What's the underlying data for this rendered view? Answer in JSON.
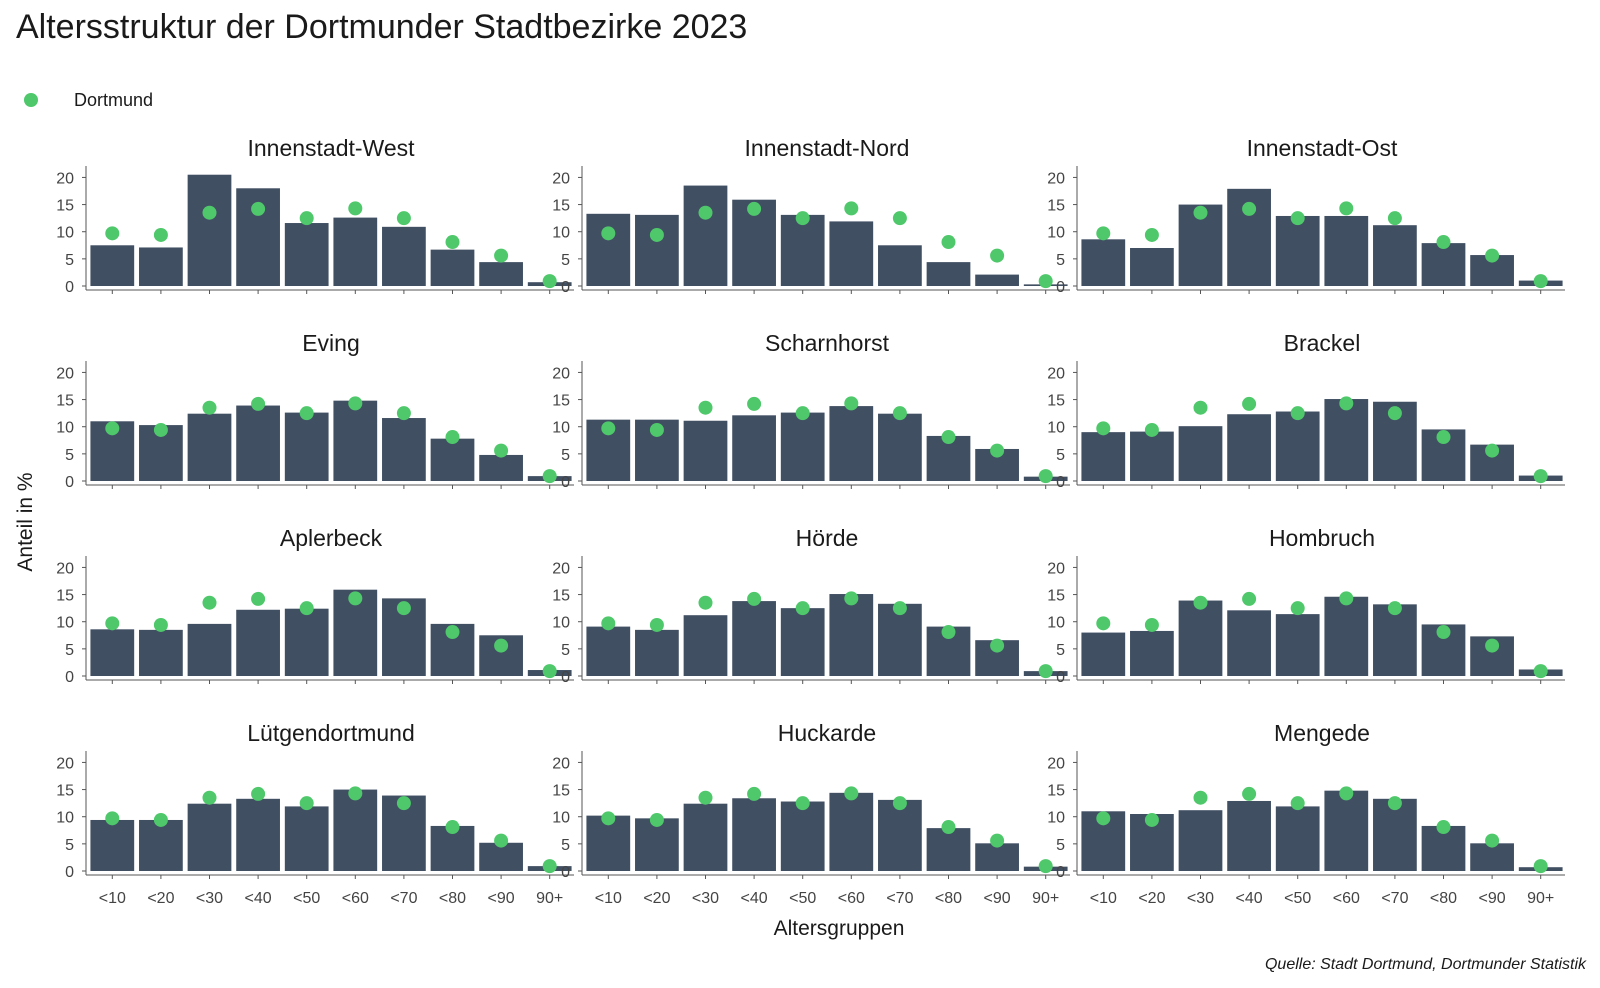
{
  "colors": {
    "bar": "#414f63",
    "dot": "#4ec86a",
    "axis": "#555555"
  },
  "chart_data": {
    "type": "bar",
    "title": "Altersstruktur der Dortmunder Stadtbezirke 2023",
    "xlabel": "Altersgruppen",
    "ylabel": "Anteil in %",
    "source": "Quelle: Stadt Dortmund, Dortmunder Statistik",
    "legend": {
      "label": "Dortmund",
      "placement": "top-left"
    },
    "ylim": [
      0,
      21
    ],
    "yticks": [
      "0",
      "5",
      "10",
      "15",
      "20"
    ],
    "categories": [
      "<10",
      "<20",
      "<30",
      "<40",
      "<50",
      "<60",
      "<70",
      "<80",
      "<90",
      "90+"
    ],
    "reference": {
      "name": "Dortmund",
      "values": [
        9.7,
        9.4,
        13.5,
        14.2,
        12.5,
        14.3,
        12.5,
        8.1,
        5.6,
        0.9
      ]
    },
    "panels": [
      {
        "name": "Innenstadt-West",
        "values": [
          7.5,
          7.1,
          20.5,
          18.0,
          11.6,
          12.6,
          10.9,
          6.7,
          4.4,
          0.7
        ]
      },
      {
        "name": "Innenstadt-Nord",
        "values": [
          13.3,
          13.1,
          18.5,
          15.9,
          13.1,
          11.9,
          7.5,
          4.4,
          2.1,
          0.3
        ]
      },
      {
        "name": "Innenstadt-Ost",
        "values": [
          8.6,
          7.0,
          15.0,
          17.9,
          12.9,
          12.9,
          11.2,
          7.9,
          5.7,
          1.0
        ]
      },
      {
        "name": "Eving",
        "values": [
          11.0,
          10.3,
          12.4,
          13.9,
          12.6,
          14.8,
          11.6,
          7.8,
          4.8,
          0.9
        ]
      },
      {
        "name": "Scharnhorst",
        "values": [
          11.3,
          11.3,
          11.1,
          12.1,
          12.6,
          13.8,
          12.4,
          8.3,
          5.9,
          0.8
        ]
      },
      {
        "name": "Brackel",
        "values": [
          9.0,
          9.1,
          10.1,
          12.3,
          12.8,
          15.1,
          14.6,
          9.5,
          6.7,
          1.0
        ]
      },
      {
        "name": "Aplerbeck",
        "values": [
          8.6,
          8.5,
          9.6,
          12.2,
          12.4,
          15.9,
          14.3,
          9.6,
          7.5,
          1.1
        ]
      },
      {
        "name": "Hörde",
        "values": [
          9.1,
          8.5,
          11.2,
          13.8,
          12.5,
          15.1,
          13.3,
          9.1,
          6.6,
          0.9
        ]
      },
      {
        "name": "Hombruch",
        "values": [
          8.0,
          8.3,
          13.9,
          12.1,
          11.4,
          14.6,
          13.2,
          9.5,
          7.3,
          1.2
        ]
      },
      {
        "name": "Lütgendortmund",
        "values": [
          9.4,
          9.4,
          12.4,
          13.3,
          11.9,
          15.0,
          13.9,
          8.3,
          5.2,
          0.9
        ]
      },
      {
        "name": "Huckarde",
        "values": [
          10.2,
          9.7,
          12.4,
          13.4,
          12.8,
          14.4,
          13.1,
          7.9,
          5.1,
          0.8
        ]
      },
      {
        "name": "Mengede",
        "values": [
          11.0,
          10.5,
          11.2,
          12.9,
          11.9,
          14.8,
          13.3,
          8.3,
          5.1,
          0.7
        ]
      }
    ]
  }
}
